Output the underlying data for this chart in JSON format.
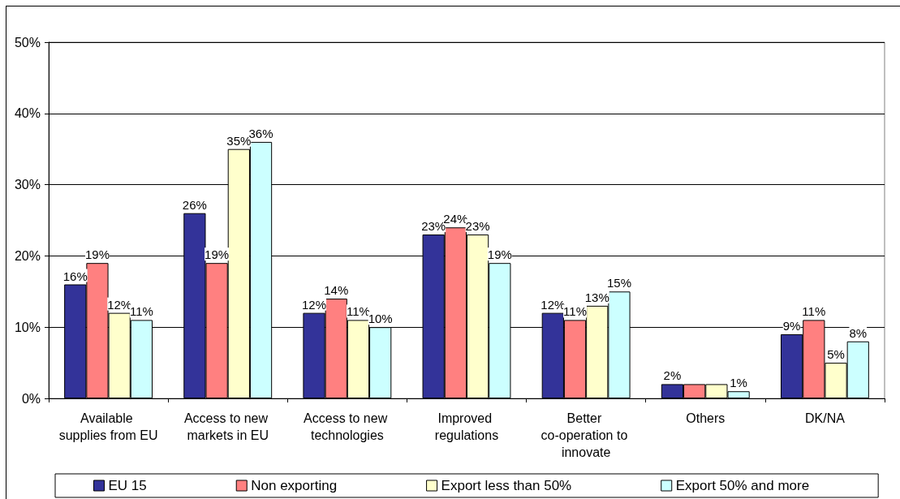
{
  "chart_data": {
    "type": "bar",
    "categories": [
      "Available supplies from EU",
      "Access to new markets in EU",
      "Access to new technologies",
      "Improved regulations",
      "Better co-operation to innovate",
      "Others",
      "DK/NA"
    ],
    "series": [
      {
        "name": "EU 15",
        "color": "#333399",
        "values": [
          16,
          26,
          12,
          23,
          12,
          2,
          9
        ],
        "value_labels": [
          "16%",
          "26%",
          "12%",
          "23%",
          "12%",
          "2%",
          "9%"
        ]
      },
      {
        "name": "Non exporting",
        "color": "#ff8080",
        "values": [
          19,
          19,
          14,
          24,
          11,
          2,
          11
        ],
        "value_labels": [
          "19%",
          "19%",
          "14%",
          "24%",
          "11%",
          null,
          "11%"
        ]
      },
      {
        "name": "Export less than 50%",
        "color": "#ffffcc",
        "values": [
          12,
          35,
          11,
          23,
          13,
          2,
          5
        ],
        "value_labels": [
          "12%",
          "35%",
          "11%",
          "23%",
          "13%",
          null,
          "5%"
        ]
      },
      {
        "name": "Export 50% and more",
        "color": "#ccffff",
        "values": [
          11,
          36,
          10,
          19,
          15,
          1,
          8
        ],
        "value_labels": [
          "11%",
          "36%",
          "10%",
          "19%",
          "15%",
          "1%",
          "8%"
        ]
      }
    ],
    "ylim": [
      0,
      50
    ],
    "yticks": [
      {
        "value": 0,
        "label": "0%"
      },
      {
        "value": 10,
        "label": "10%"
      },
      {
        "value": 20,
        "label": "20%"
      },
      {
        "value": 30,
        "label": "30%"
      },
      {
        "value": 40,
        "label": "40%"
      },
      {
        "value": 50,
        "label": "50%"
      }
    ],
    "grid": "y",
    "legend": "bottom"
  }
}
